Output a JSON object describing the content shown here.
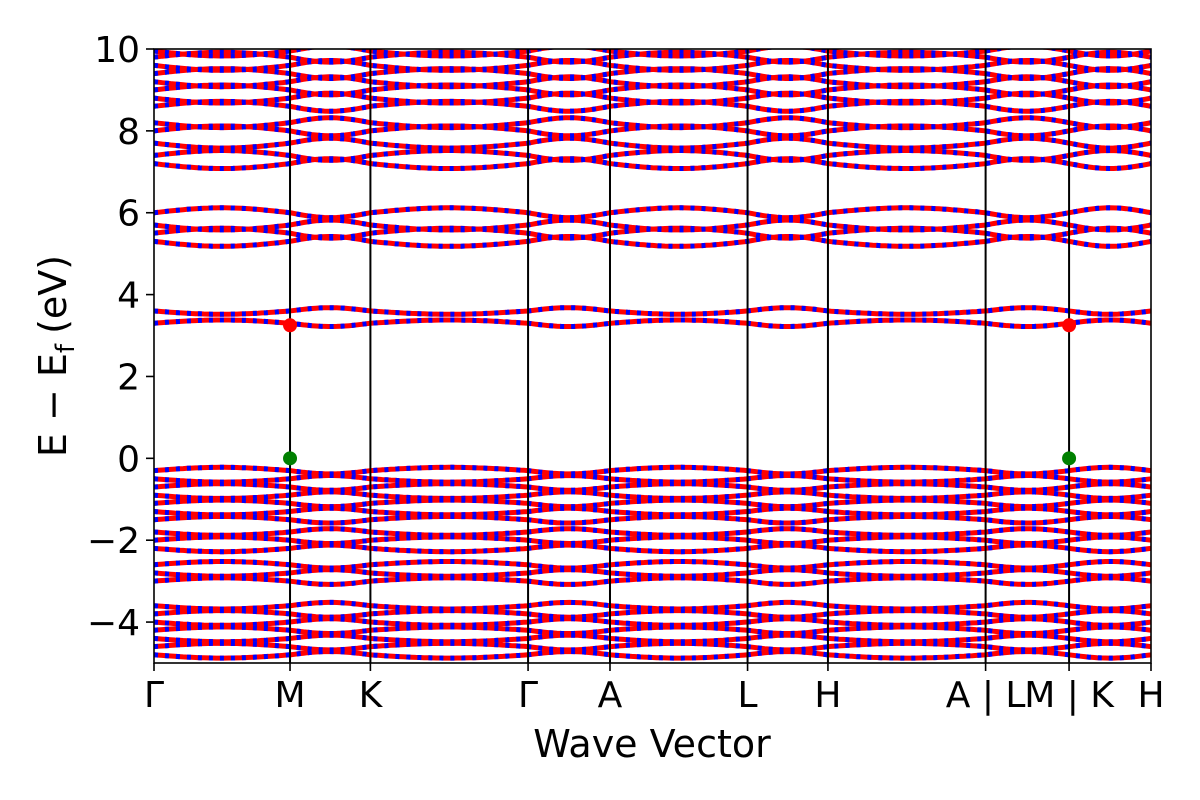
{
  "chart_data": {
    "type": "line",
    "title": "",
    "xlabel": "Wave Vector",
    "ylabel": {
      "main": "E − E",
      "subscript": "f",
      "unit": "(eV)"
    },
    "ylim": [
      -5,
      10
    ],
    "y_ticks": [
      -4,
      -2,
      0,
      2,
      4,
      6,
      8,
      10
    ],
    "y_tick_labels": [
      "−4",
      "−2",
      "0",
      "2",
      "4",
      "6",
      "8",
      "10"
    ],
    "x_range": [
      0,
      6.45
    ],
    "k_points": [
      {
        "label": "Γ",
        "x": 0.0
      },
      {
        "label": "M",
        "x": 0.88
      },
      {
        "label": "K",
        "x": 1.4
      },
      {
        "label": "Γ",
        "x": 2.42
      },
      {
        "label": "A",
        "x": 2.95
      },
      {
        "label": "L",
        "x": 3.84
      },
      {
        "label": "H",
        "x": 4.36
      },
      {
        "label": "A | L",
        "x": 5.38
      },
      {
        "label": "M | K",
        "x": 5.92
      },
      {
        "label": "H",
        "x": 6.45
      }
    ],
    "colors": {
      "band_spin_up": "#ff0000",
      "band_spin_down": "#0000ff",
      "vbm_marker": "#008000",
      "cbm_marker": "#ff0000",
      "vline": "#000000"
    },
    "series": [
      {
        "role": "upper-bands",
        "values": [
          5.3,
          5.5,
          5.7,
          6.0,
          7.2,
          7.4,
          7.7,
          8.0,
          8.2,
          8.6,
          8.8,
          9.0,
          9.2,
          9.4,
          9.6,
          9.8,
          9.95
        ]
      },
      {
        "role": "conduction-flat-bands",
        "values": [
          3.3,
          3.6
        ]
      },
      {
        "role": "valence-bands",
        "values": [
          -0.3,
          -0.5,
          -0.7,
          -0.9,
          -1.1,
          -1.3,
          -1.5,
          -1.8,
          -2.0,
          -2.2,
          -2.6,
          -2.8,
          -3.0,
          -3.6,
          -3.8,
          -4.0,
          -4.2,
          -4.4,
          -4.6,
          -4.8
        ]
      }
    ],
    "band_edges": {
      "vbm": {
        "k": "M",
        "energy": 0.0
      },
      "cbm": {
        "k": "M",
        "energy": 3.25
      }
    }
  }
}
